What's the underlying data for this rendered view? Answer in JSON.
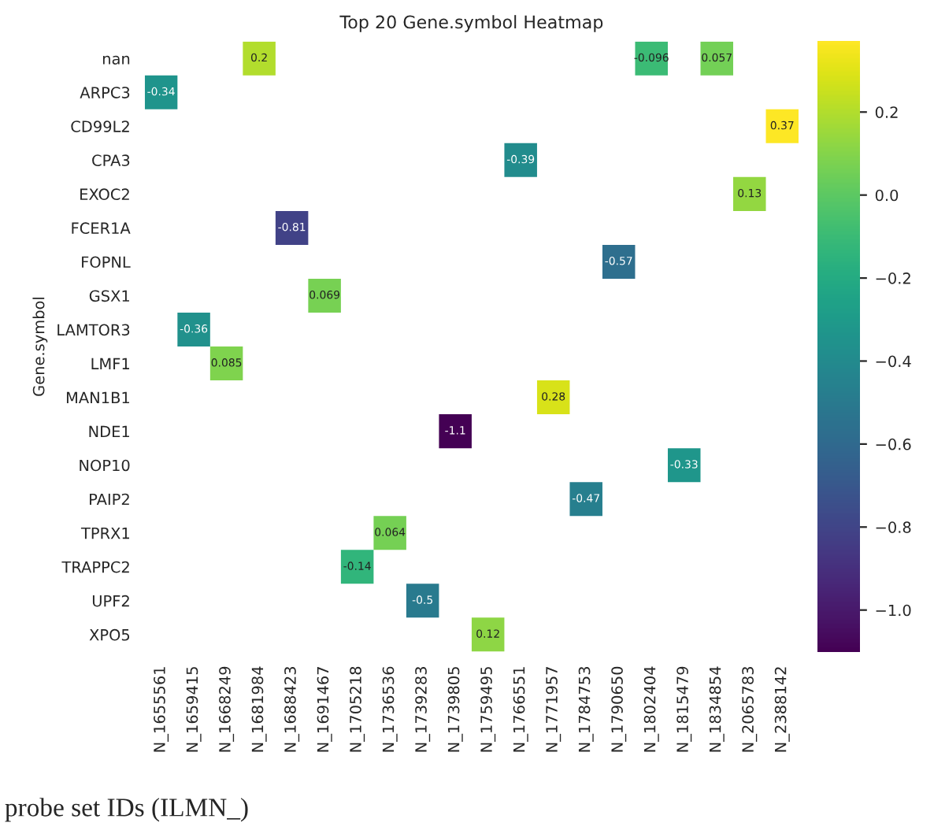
{
  "chart_data": {
    "type": "heatmap",
    "title": "Top 20 Gene.symbol Heatmap",
    "ylabel": "Gene.symbol",
    "categories": [
      "N_1655561",
      "N_1659415",
      "N_1668249",
      "N_1681984",
      "N_1688423",
      "N_1691467",
      "N_1705218",
      "N_1736536",
      "N_1739283",
      "N_1739805",
      "N_1759495",
      "N_1766551",
      "N_1771957",
      "N_1784753",
      "N_1790650",
      "N_1802404",
      "N_1815479",
      "N_1834854",
      "N_2065783",
      "N_2388142"
    ],
    "y_categories": [
      "nan",
      "ARPC3",
      "CD99L2",
      "CPA3",
      "EXOC2",
      "FCER1A",
      "FOPNL",
      "GSX1",
      "LAMTOR3",
      "LMF1",
      "MAN1B1",
      "NDE1",
      "NOP10",
      "PAIP2",
      "TPRX1",
      "TRAPPC2",
      "UPF2",
      "XPO5"
    ],
    "cells": [
      [
        null,
        null,
        null,
        0.2,
        null,
        null,
        null,
        null,
        null,
        null,
        null,
        null,
        null,
        null,
        null,
        -0.096,
        null,
        0.057,
        null,
        null
      ],
      [
        -0.34,
        null,
        null,
        null,
        null,
        null,
        null,
        null,
        null,
        null,
        null,
        null,
        null,
        null,
        null,
        null,
        null,
        null,
        null,
        null
      ],
      [
        null,
        null,
        null,
        null,
        null,
        null,
        null,
        null,
        null,
        null,
        null,
        null,
        null,
        null,
        null,
        null,
        null,
        null,
        null,
        0.37
      ],
      [
        null,
        null,
        null,
        null,
        null,
        null,
        null,
        null,
        null,
        null,
        null,
        -0.39,
        null,
        null,
        null,
        null,
        null,
        null,
        null,
        null
      ],
      [
        null,
        null,
        null,
        null,
        null,
        null,
        null,
        null,
        null,
        null,
        null,
        null,
        null,
        null,
        null,
        null,
        null,
        null,
        0.13,
        null
      ],
      [
        null,
        null,
        null,
        null,
        -0.81,
        null,
        null,
        null,
        null,
        null,
        null,
        null,
        null,
        null,
        null,
        null,
        null,
        null,
        null,
        null
      ],
      [
        null,
        null,
        null,
        null,
        null,
        null,
        null,
        null,
        null,
        null,
        null,
        null,
        null,
        null,
        -0.57,
        null,
        null,
        null,
        null,
        null
      ],
      [
        null,
        null,
        null,
        null,
        null,
        0.069,
        null,
        null,
        null,
        null,
        null,
        null,
        null,
        null,
        null,
        null,
        null,
        null,
        null,
        null
      ],
      [
        null,
        -0.36,
        null,
        null,
        null,
        null,
        null,
        null,
        null,
        null,
        null,
        null,
        null,
        null,
        null,
        null,
        null,
        null,
        null,
        null
      ],
      [
        null,
        null,
        0.085,
        null,
        null,
        null,
        null,
        null,
        null,
        null,
        null,
        null,
        null,
        null,
        null,
        null,
        null,
        null,
        null,
        null
      ],
      [
        null,
        null,
        null,
        null,
        null,
        null,
        null,
        null,
        null,
        null,
        null,
        null,
        0.28,
        null,
        null,
        null,
        null,
        null,
        null,
        null
      ],
      [
        null,
        null,
        null,
        null,
        null,
        null,
        null,
        null,
        null,
        -1.1,
        null,
        null,
        null,
        null,
        null,
        null,
        null,
        null,
        null,
        null
      ],
      [
        null,
        null,
        null,
        null,
        null,
        null,
        null,
        null,
        null,
        null,
        null,
        null,
        null,
        null,
        null,
        null,
        -0.33,
        null,
        null,
        null
      ],
      [
        null,
        null,
        null,
        null,
        null,
        null,
        null,
        null,
        null,
        null,
        null,
        null,
        null,
        -0.47,
        null,
        null,
        null,
        null,
        null,
        null
      ],
      [
        null,
        null,
        null,
        null,
        null,
        null,
        null,
        0.064,
        null,
        null,
        null,
        null,
        null,
        null,
        null,
        null,
        null,
        null,
        null,
        null
      ],
      [
        null,
        null,
        null,
        null,
        null,
        null,
        -0.14,
        null,
        null,
        null,
        null,
        null,
        null,
        null,
        null,
        null,
        null,
        null,
        null,
        null
      ],
      [
        null,
        null,
        null,
        null,
        null,
        null,
        null,
        null,
        -0.5,
        null,
        null,
        null,
        null,
        null,
        null,
        null,
        null,
        null,
        null,
        null
      ],
      [
        null,
        null,
        null,
        null,
        null,
        null,
        null,
        null,
        null,
        null,
        0.12,
        null,
        null,
        null,
        null,
        null,
        null,
        null,
        null,
        null
      ]
    ],
    "clim": [
      -1.1,
      0.37
    ],
    "cticks": [
      {
        "value": -1,
        "label": "−1.0"
      },
      {
        "value": -0.8,
        "label": "−0.8"
      },
      {
        "value": -0.6,
        "label": "−0.6"
      },
      {
        "value": -0.4,
        "label": "−0.4"
      },
      {
        "value": -0.2,
        "label": "−0.2"
      },
      {
        "value": 0,
        "label": "0.0"
      },
      0.2
    ],
    "data_labels": true,
    "annotations": [
      "probe set IDs (ILMN_)"
    ]
  }
}
